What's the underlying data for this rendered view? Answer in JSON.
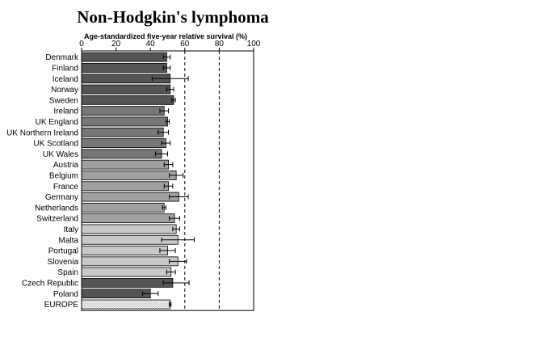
{
  "chart_data": {
    "type": "bar",
    "orientation": "horizontal",
    "title": "Non-Hodgkin's lymphoma",
    "xlabel": "Age-standardized five-year relative survival (%)",
    "ylabel": "",
    "xlim": [
      0,
      100
    ],
    "xticks": [
      0,
      20,
      40,
      60,
      80,
      100
    ],
    "reference_lines": [
      60,
      80
    ],
    "grid": false,
    "legend": "none",
    "error_bars": true,
    "categories": [
      "Denmark",
      "Finland",
      "Iceland",
      "Norway",
      "Sweden",
      "Ireland",
      "UK England",
      "UK Northern Ireland",
      "UK Scotland",
      "UK Wales",
      "Austria",
      "Belgium",
      "France",
      "Germany",
      "Netherlands",
      "Switzerland",
      "Italy",
      "Malta",
      "Portugal",
      "Slovenia",
      "Spain",
      "Czech Republic",
      "Poland",
      "EUROPE"
    ],
    "values": [
      49.5,
      49.5,
      51.5,
      51.5,
      53.5,
      48.0,
      50.0,
      47.5,
      49.0,
      46.5,
      50.5,
      55.0,
      50.5,
      56.5,
      48.0,
      54.0,
      55.0,
      56.0,
      50.0,
      56.0,
      52.0,
      53.0,
      40.0,
      51.5
    ],
    "ci_low": [
      47.5,
      47.5,
      41.0,
      49.5,
      52.5,
      45.5,
      49.0,
      44.5,
      46.5,
      43.0,
      48.0,
      51.0,
      48.0,
      51.0,
      47.0,
      51.0,
      53.0,
      46.5,
      45.5,
      51.0,
      49.5,
      47.5,
      35.5,
      51.0
    ],
    "ci_high": [
      51.5,
      51.5,
      62.0,
      53.5,
      54.5,
      50.5,
      51.0,
      50.5,
      51.5,
      50.0,
      53.0,
      59.0,
      53.0,
      62.0,
      49.0,
      57.0,
      57.0,
      65.5,
      54.5,
      61.0,
      54.5,
      62.5,
      44.5,
      52.0
    ],
    "group_colors": [
      "#555555",
      "#555555",
      "#555555",
      "#555555",
      "#555555",
      "#777777",
      "#777777",
      "#777777",
      "#777777",
      "#777777",
      "#a0a0a0",
      "#a0a0a0",
      "#a0a0a0",
      "#a0a0a0",
      "#a0a0a0",
      "#a0a0a0",
      "#c8c8c8",
      "#c8c8c8",
      "#c8c8c8",
      "#c8c8c8",
      "#c8c8c8",
      "#555555",
      "#555555",
      "dotted"
    ]
  }
}
